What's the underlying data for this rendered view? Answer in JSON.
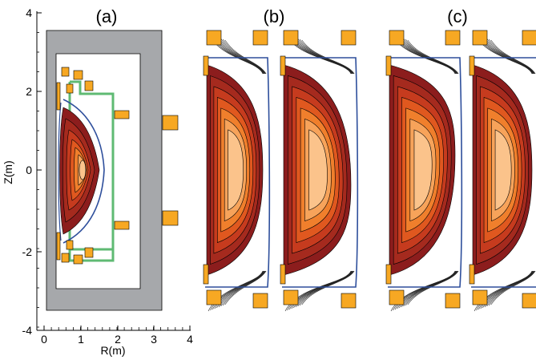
{
  "panels": {
    "a": {
      "label": "(a)"
    },
    "b": {
      "label": "(b)"
    },
    "c": {
      "label": "(c)"
    }
  },
  "axes": {
    "y_label": "Z(m)",
    "x_label": "R(m)",
    "y_ticks": [
      "4",
      "2",
      "0",
      "-2",
      "-4"
    ],
    "x_ticks": [
      "0",
      "1",
      "2",
      "3",
      "4"
    ]
  },
  "colors": {
    "vessel_gray": "#a6a8ab",
    "coil_orange": "#f7a823",
    "first_wall_green": "#5fba73",
    "separatrix_blue": "#2e4f9c",
    "plasma_edge": "#8c1d1d",
    "plasma_core": "#fbc38b"
  }
}
